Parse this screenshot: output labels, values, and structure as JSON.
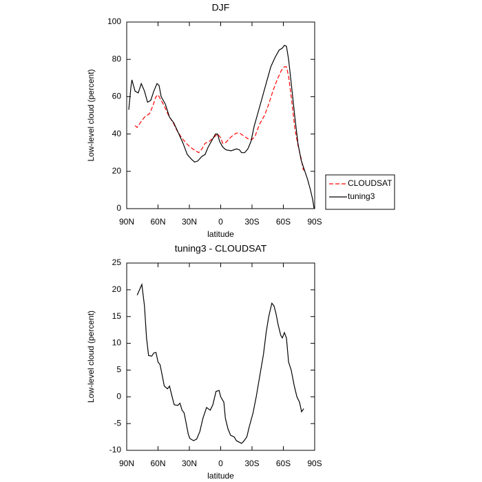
{
  "chart_data": [
    {
      "type": "line",
      "title": "DJF",
      "xlabel": "latitude",
      "ylabel": "Low-level cloud (percent)",
      "xlim": [
        90,
        -90
      ],
      "xticks": [
        {
          "value": 90,
          "label": "90N"
        },
        {
          "value": 60,
          "label": "60N"
        },
        {
          "value": 30,
          "label": "30N"
        },
        0,
        {
          "value": -30,
          "label": "30S"
        },
        {
          "value": -60,
          "label": "60S"
        },
        {
          "value": -90,
          "label": "90S"
        }
      ],
      "ylim": [
        0,
        100
      ],
      "yticks": [
        0,
        20,
        40,
        60,
        80,
        100
      ],
      "legend": "right",
      "series": [
        {
          "name": "CLOUDSAT",
          "color": "#ff0000",
          "dash": true,
          "x": [
            82,
            80,
            77,
            73,
            68,
            65,
            62,
            60,
            57,
            54,
            50,
            45,
            42,
            38,
            33,
            28,
            24,
            21,
            18,
            15,
            11,
            7,
            3,
            0,
            -2,
            -5,
            -10,
            -15,
            -18,
            -22,
            -26,
            -30,
            -33,
            -37,
            -42,
            -46,
            -50,
            -54,
            -58,
            -61,
            -63,
            -65,
            -68,
            -71,
            -74,
            -77,
            -79,
            -81
          ],
          "values": [
            44.5,
            43.5,
            46,
            49,
            51,
            55,
            60,
            61,
            58,
            55,
            50,
            45.5,
            42,
            38.5,
            35,
            32.5,
            31,
            30,
            32,
            35,
            36,
            38,
            40,
            38,
            35,
            35.5,
            38.5,
            40.5,
            40.5,
            39,
            37.5,
            37,
            39,
            45,
            50,
            56,
            63,
            69,
            74,
            76,
            76,
            71,
            58,
            43,
            34,
            27,
            21,
            20
          ]
        },
        {
          "name": "tuning3",
          "color": "#000000",
          "dash": false,
          "x": [
            88,
            86,
            85,
            82,
            79,
            76,
            73,
            70,
            67,
            64,
            61,
            59,
            57,
            53,
            49,
            45,
            40,
            36,
            32,
            28,
            25,
            22,
            18,
            15,
            12,
            8,
            5,
            3,
            1,
            -2,
            -5,
            -10,
            -15,
            -18,
            -20,
            -23,
            -26,
            -29,
            -32,
            -36,
            -40,
            -44,
            -48,
            -52,
            -56,
            -59,
            -61,
            -63,
            -65,
            -68,
            -71,
            -74,
            -77,
            -80,
            -83,
            -86,
            -88,
            -89.5
          ],
          "values": [
            53,
            65,
            69,
            63,
            62,
            67,
            63,
            57,
            58,
            63,
            67,
            66,
            60,
            56,
            49,
            46,
            40,
            35,
            29,
            26.5,
            25,
            25.5,
            28,
            29,
            33,
            37,
            40,
            40,
            36,
            33,
            31.5,
            31,
            32,
            31.5,
            30,
            30,
            32,
            36,
            44,
            52,
            60,
            68,
            76,
            81,
            85,
            86,
            87.5,
            87,
            80,
            65,
            49,
            35,
            26,
            21,
            16,
            10,
            5,
            0
          ]
        }
      ]
    },
    {
      "type": "line",
      "title": "tuning3 - CLOUDSAT",
      "xlabel": "latitude",
      "ylabel": "Low-level cloud (percent)",
      "xlim": [
        90,
        -90
      ],
      "xticks": [
        {
          "value": 90,
          "label": "90N"
        },
        {
          "value": 60,
          "label": "60N"
        },
        {
          "value": 30,
          "label": "30N"
        },
        0,
        {
          "value": -30,
          "label": "30S"
        },
        {
          "value": -60,
          "label": "60S"
        },
        {
          "value": -90,
          "label": "90S"
        }
      ],
      "ylim": [
        -10,
        25
      ],
      "yticks": [
        -10,
        -5,
        0,
        5,
        10,
        15,
        20,
        25
      ],
      "series": [
        {
          "color": "#000000",
          "dash": false,
          "x": [
            80,
            75.5,
            73,
            71,
            69,
            66,
            64,
            62,
            60,
            58,
            56,
            54,
            51,
            49,
            46.5,
            44.5,
            41,
            39,
            37,
            35,
            31,
            29.5,
            26,
            23,
            20,
            17,
            13.5,
            10,
            7.5,
            4.5,
            1.5,
            0,
            -3,
            -4.5,
            -7,
            -9.5,
            -13,
            -15,
            -18,
            -20,
            -22,
            -25,
            -27.5,
            -31,
            -34,
            -37.5,
            -41,
            -43.5,
            -46,
            -49,
            -51,
            -53,
            -55,
            -57.5,
            -59,
            -61,
            -63,
            -65,
            -67.5,
            -70.5,
            -73,
            -75.5,
            -77.5,
            -79.5
          ],
          "values": [
            19,
            21,
            17,
            11,
            7.7,
            7.6,
            8.2,
            8.3,
            6.5,
            6,
            4,
            2,
            1.5,
            2,
            0,
            -1.5,
            -1.6,
            -1.2,
            -2.5,
            -3,
            -7,
            -7.8,
            -8.2,
            -7.9,
            -6.5,
            -4,
            -2,
            -2.5,
            -1.5,
            1,
            1.2,
            0,
            -1,
            -4,
            -6,
            -7.2,
            -7.5,
            -8.2,
            -8.5,
            -8.7,
            -8.3,
            -7.5,
            -5.5,
            -3,
            0,
            4,
            8,
            12,
            15,
            17.5,
            17,
            15.5,
            13.5,
            11.5,
            11,
            12,
            11,
            6.5,
            5,
            2,
            0,
            -1,
            -2.8,
            -2.2
          ]
        }
      ]
    }
  ]
}
